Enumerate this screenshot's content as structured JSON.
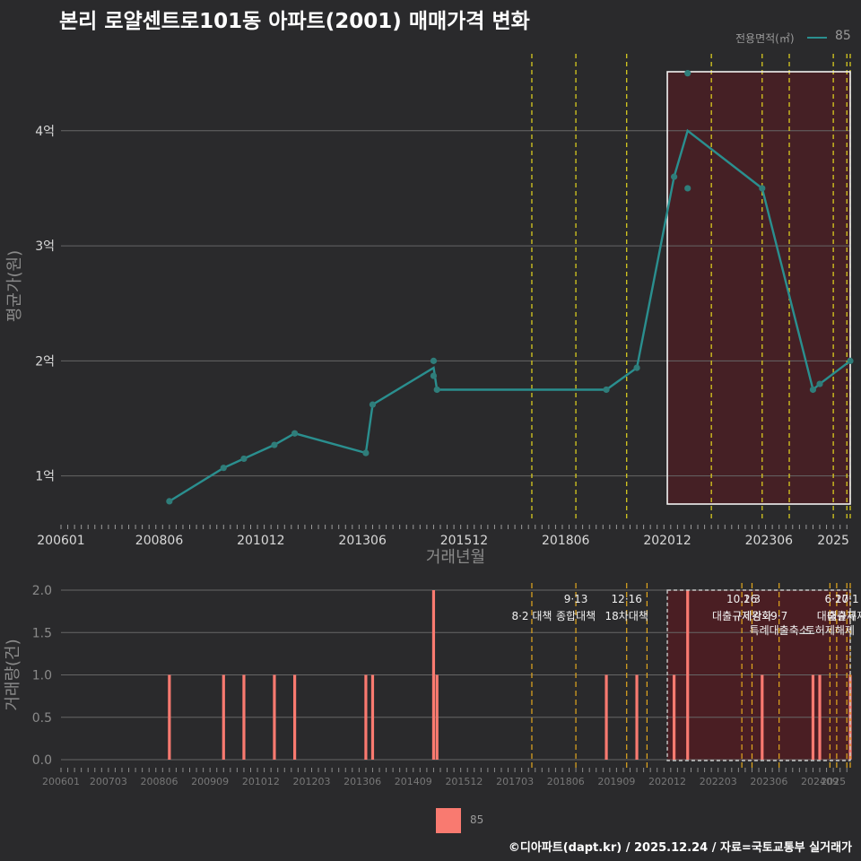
{
  "title": "본리 로얄센트로101동 아파트(2001) 매매가격 변화",
  "footer": "©디아파트(dapt.kr) / 2025.12.24 / 자료=국토교통부 실거래가",
  "legend": {
    "title": "전용면적(㎡)",
    "item": "85",
    "color": "#2a8f8f"
  },
  "volume_legend": {
    "item": "85",
    "color": "#f97a70"
  },
  "colors": {
    "background": "#2a2a2c",
    "line": "#2a8f8f",
    "bar": "#f97a70",
    "highlight": "#4a1f24",
    "policy": "#e6d81e",
    "grid": "#666666"
  },
  "chart_data": [
    {
      "type": "line",
      "title": "본리 로얄센트로101동 아파트(2001) 매매가격 변화",
      "xlabel": "거래년월",
      "ylabel": "평균가(원)",
      "xlim": [
        "2006-01",
        "2025-06"
      ],
      "ylim": [
        0.6,
        4.7
      ],
      "x_ticks": [
        "200601",
        "200806",
        "201012",
        "201306",
        "201512",
        "201806",
        "202012",
        "202306",
        "2025"
      ],
      "y_ticks": [
        {
          "value": 1,
          "label": "1억"
        },
        {
          "value": 2,
          "label": "2억"
        },
        {
          "value": 3,
          "label": "3억"
        },
        {
          "value": 4,
          "label": "4억"
        }
      ],
      "series": [
        {
          "name": "85",
          "line": [
            [
              "2008-09",
              0.78
            ],
            [
              "2010-01",
              1.07
            ],
            [
              "2010-07",
              1.15
            ],
            [
              "2011-04",
              1.27
            ],
            [
              "2011-10",
              1.37
            ],
            [
              "2013-07",
              1.2
            ],
            [
              "2013-09",
              1.62
            ],
            [
              "2015-03",
              1.94
            ],
            [
              "2015-04",
              1.75
            ],
            [
              "2019-06",
              1.75
            ],
            [
              "2020-03",
              1.94
            ],
            [
              "2021-02",
              3.6
            ],
            [
              "2021-06",
              4.0
            ],
            [
              "2023-04",
              3.5
            ],
            [
              "2024-07",
              1.75
            ],
            [
              "2024-09",
              1.8
            ],
            [
              "2025-06",
              2.0
            ]
          ],
          "points": [
            [
              "2008-09",
              0.78
            ],
            [
              "2010-01",
              1.07
            ],
            [
              "2010-07",
              1.15
            ],
            [
              "2011-04",
              1.27
            ],
            [
              "2011-10",
              1.37
            ],
            [
              "2013-07",
              1.2
            ],
            [
              "2013-09",
              1.62
            ],
            [
              "2015-03",
              2.0
            ],
            [
              "2015-03",
              1.87
            ],
            [
              "2015-04",
              1.75
            ],
            [
              "2019-06",
              1.75
            ],
            [
              "2020-03",
              1.94
            ],
            [
              "2021-02",
              3.6
            ],
            [
              "2021-06",
              4.5
            ],
            [
              "2021-06",
              3.5
            ],
            [
              "2023-04",
              3.5
            ],
            [
              "2024-07",
              1.75
            ],
            [
              "2024-09",
              1.8
            ],
            [
              "2025-06",
              2.0
            ]
          ]
        }
      ],
      "highlight_range": [
        "2020-12",
        "2025-06"
      ],
      "policy_lines": [
        "2017-08",
        "2018-09",
        "2019-12",
        "2022-01",
        "2023-04",
        "2023-12",
        "2025-01",
        "2025-05",
        "2025-06"
      ]
    },
    {
      "type": "bar",
      "xlabel": "",
      "ylabel": "거래량(건)",
      "xlim": [
        "2006-01",
        "2025-06"
      ],
      "ylim": [
        0,
        2
      ],
      "x_ticks": [
        "200601",
        "200703",
        "200806",
        "200909",
        "201012",
        "201203",
        "201306",
        "201409",
        "201512",
        "201703",
        "201806",
        "201909",
        "202012",
        "202203",
        "202306",
        "202409",
        "2025"
      ],
      "y_ticks": [
        "0.0",
        "0.5",
        "1.0",
        "1.5",
        "2.0"
      ],
      "series": [
        {
          "name": "85",
          "points": [
            [
              "2008-09",
              1
            ],
            [
              "2010-01",
              1
            ],
            [
              "2010-07",
              1
            ],
            [
              "2011-04",
              1
            ],
            [
              "2011-10",
              1
            ],
            [
              "2013-07",
              1
            ],
            [
              "2013-09",
              1
            ],
            [
              "2015-03",
              2
            ],
            [
              "2015-04",
              1
            ],
            [
              "2019-06",
              1
            ],
            [
              "2020-03",
              1
            ],
            [
              "2021-02",
              1
            ],
            [
              "2021-06",
              2
            ],
            [
              "2023-04",
              1
            ],
            [
              "2024-07",
              1
            ],
            [
              "2024-09",
              1
            ],
            [
              "2025-06",
              1
            ]
          ]
        }
      ],
      "highlight_range": [
        "2020-12",
        "2025-06"
      ],
      "policy_lines": [
        "2017-08",
        "2018-09",
        "2019-12",
        "2020-06",
        "2022-10",
        "2023-01",
        "2023-09",
        "2024-12",
        "2025-02",
        "2025-05",
        "2025-06"
      ],
      "annotations": [
        {
          "x": "2017-08",
          "level": 1,
          "label": "8·2 대책"
        },
        {
          "x": "2018-09",
          "level": 0,
          "label": "9·13"
        },
        {
          "x": "2018-09",
          "level": 1,
          "label": "종합대책"
        },
        {
          "x": "2019-12",
          "level": 0,
          "label": "12·16"
        },
        {
          "x": "2019-12",
          "level": 1,
          "label": "18차대책"
        },
        {
          "x": "2022-10",
          "level": 0,
          "label": "10.26"
        },
        {
          "x": "2022-10",
          "level": 1,
          "label": "대출규제강화"
        },
        {
          "x": "2023-01",
          "level": 0,
          "label": "1·3"
        },
        {
          "x": "2023-01",
          "level": 1,
          "label": "규제완화"
        },
        {
          "x": "2023-09",
          "level": 1,
          "label": "9·7"
        },
        {
          "x": "2023-09",
          "level": 2,
          "label": "특례대출축소"
        },
        {
          "x": "2024-12",
          "level": 2,
          "label": "토허제해제"
        },
        {
          "x": "2025-02",
          "level": 0,
          "label": "6·27"
        },
        {
          "x": "2025-05",
          "level": 0,
          "label": "10·1"
        },
        {
          "x": "2025-02",
          "level": 1,
          "label": "대출규제"
        },
        {
          "x": "2025-05",
          "level": 1,
          "label": "대출규제"
        }
      ]
    }
  ]
}
